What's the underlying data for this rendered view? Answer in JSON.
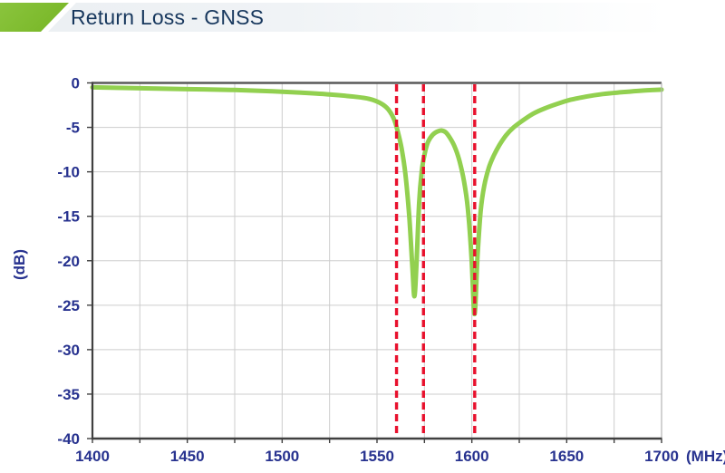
{
  "header": {
    "title": "Return Loss - GNSS"
  },
  "colors": {
    "header_accent": "#79b928",
    "header_text": "#17375d",
    "curve": "#92d050",
    "marker": "#e8112d",
    "tick_label": "#27328f",
    "grid": "#cdcdcd",
    "axis_dark": "#404040",
    "axis_top": "#595959",
    "axis_right": "#b5b5b5"
  },
  "chart_data": {
    "type": "line",
    "title": "Return Loss - GNSS",
    "xlabel": "(MHz)",
    "ylabel": "(dB)",
    "xlim": [
      1400,
      1700
    ],
    "ylim": [
      -40,
      0
    ],
    "x_tick_labels": [
      1400,
      1450,
      1500,
      1550,
      1600,
      1650,
      1700
    ],
    "x_minor_step": 25,
    "y_tick_labels": [
      0,
      -5,
      -10,
      -15,
      -20,
      -25,
      -30,
      -35,
      -40
    ],
    "grid": true,
    "legend": false,
    "series": [
      {
        "name": "return-loss-gnss",
        "points": [
          [
            1400,
            -0.5
          ],
          [
            1425,
            -0.6
          ],
          [
            1450,
            -0.7
          ],
          [
            1475,
            -0.8
          ],
          [
            1495,
            -0.95
          ],
          [
            1510,
            -1.1
          ],
          [
            1525,
            -1.3
          ],
          [
            1538,
            -1.55
          ],
          [
            1546,
            -1.8
          ],
          [
            1552,
            -2.3
          ],
          [
            1556,
            -3.0
          ],
          [
            1559,
            -4.1
          ],
          [
            1561,
            -5.5
          ],
          [
            1563,
            -7.4
          ],
          [
            1565,
            -10.3
          ],
          [
            1567,
            -15.0
          ],
          [
            1568.6,
            -20.5
          ],
          [
            1569.7,
            -24.0
          ],
          [
            1570.8,
            -20.5
          ],
          [
            1572.2,
            -13.5
          ],
          [
            1573.6,
            -9.9
          ],
          [
            1575.2,
            -7.9
          ],
          [
            1577,
            -6.6
          ],
          [
            1579.5,
            -5.8
          ],
          [
            1582,
            -5.45
          ],
          [
            1584,
            -5.35
          ],
          [
            1586.2,
            -5.55
          ],
          [
            1588.5,
            -6.2
          ],
          [
            1591,
            -7.2
          ],
          [
            1593.5,
            -8.8
          ],
          [
            1595.8,
            -11.0
          ],
          [
            1597.8,
            -14.0
          ],
          [
            1599.8,
            -19.5
          ],
          [
            1601.4,
            -26.0
          ],
          [
            1603,
            -19.5
          ],
          [
            1604.6,
            -14.5
          ],
          [
            1606.5,
            -11.6
          ],
          [
            1609,
            -9.5
          ],
          [
            1611.5,
            -8.2
          ],
          [
            1614.5,
            -7.0
          ],
          [
            1618,
            -5.9
          ],
          [
            1622,
            -5.0
          ],
          [
            1627,
            -4.2
          ],
          [
            1632,
            -3.5
          ],
          [
            1638,
            -2.9
          ],
          [
            1645,
            -2.35
          ],
          [
            1652,
            -1.9
          ],
          [
            1660,
            -1.55
          ],
          [
            1669,
            -1.25
          ],
          [
            1679,
            -1.05
          ],
          [
            1689,
            -0.88
          ],
          [
            1700,
            -0.75
          ]
        ]
      }
    ],
    "markers": [
      {
        "x": 1560.3
      },
      {
        "x": 1574.5
      },
      {
        "x": 1601.5
      }
    ]
  }
}
